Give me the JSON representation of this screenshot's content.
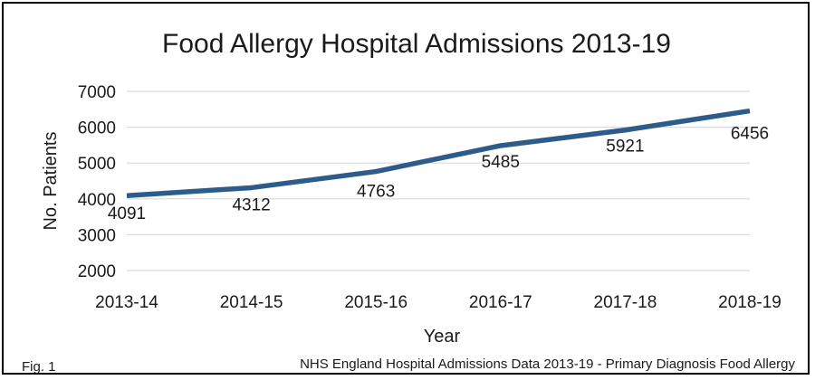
{
  "chart_data": {
    "type": "line",
    "title": "Food Allergy Hospital Admissions 2013-19",
    "xlabel": "Year",
    "ylabel": "No. Patients",
    "categories": [
      "2013-14",
      "2014-15",
      "2015-16",
      "2016-17",
      "2017-18",
      "2018-19"
    ],
    "series": [
      {
        "values": [
          4091,
          4312,
          4763,
          5485,
          5921,
          6456
        ],
        "color": "#2e5c8a"
      }
    ],
    "ylim": [
      2000,
      7000
    ],
    "yticks": [
      2000,
      3000,
      4000,
      5000,
      6000,
      7000
    ],
    "grid": true,
    "data_labels": true,
    "legend": "none"
  },
  "footer": {
    "figure_label": "Fig. 1",
    "source": "NHS England Hospital Admissions Data 2013-19 - Primary Diagnosis Food Allergy"
  }
}
